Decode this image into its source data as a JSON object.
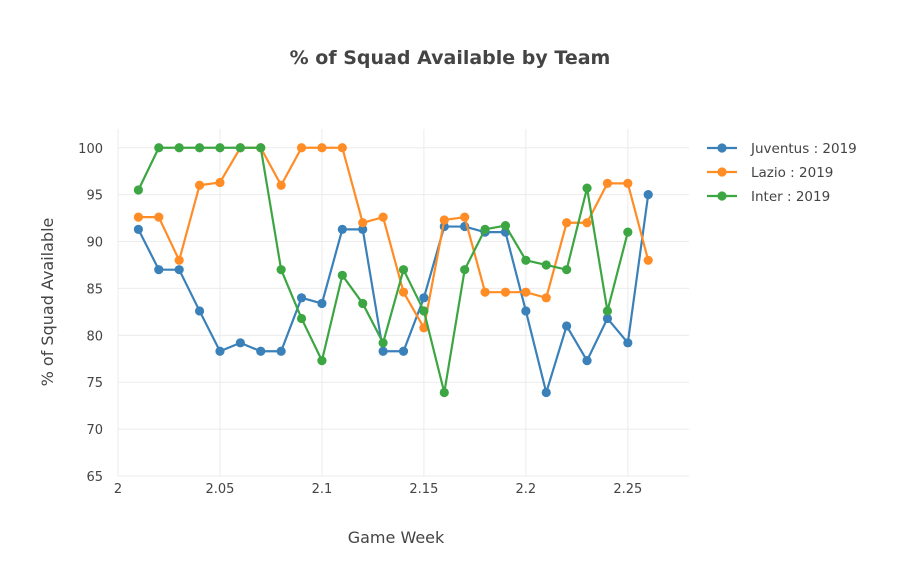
{
  "chart_data": {
    "type": "line",
    "title": "% of Squad Available by Team",
    "xlabel": "Game Week",
    "ylabel": "% of Squad Available",
    "xlim": [
      2.0,
      2.28
    ],
    "ylim": [
      65,
      102
    ],
    "x_ticks": [
      {
        "value": 2.0,
        "label": "2"
      },
      {
        "value": 2.05,
        "label": "2.05"
      },
      {
        "value": 2.1,
        "label": "2.1"
      },
      {
        "value": 2.15,
        "label": "2.15"
      },
      {
        "value": 2.2,
        "label": "2.2"
      },
      {
        "value": 2.25,
        "label": "2.25"
      }
    ],
    "y_ticks": [
      65,
      70,
      75,
      80,
      85,
      90,
      95,
      100
    ],
    "grid": true,
    "legend_position": "top-right",
    "series": [
      {
        "name": "Juventus : 2019",
        "color": "#3a80b9",
        "x": [
          2.01,
          2.02,
          2.03,
          2.04,
          2.05,
          2.06,
          2.07,
          2.08,
          2.09,
          2.1,
          2.11,
          2.12,
          2.13,
          2.14,
          2.15,
          2.16,
          2.17,
          2.18,
          2.19,
          2.2,
          2.21,
          2.22,
          2.23,
          2.24,
          2.25,
          2.26
        ],
        "values": [
          91.3,
          87.0,
          87.0,
          82.6,
          78.3,
          79.2,
          78.3,
          78.3,
          84.0,
          83.4,
          91.3,
          91.3,
          78.3,
          78.3,
          84.0,
          91.6,
          91.6,
          91.0,
          91.0,
          82.6,
          73.9,
          81.0,
          77.3,
          81.8,
          79.2,
          95.0
        ]
      },
      {
        "name": "Lazio : 2019",
        "color": "#ff8c25",
        "x": [
          2.01,
          2.02,
          2.03,
          2.04,
          2.05,
          2.06,
          2.07,
          2.08,
          2.09,
          2.1,
          2.11,
          2.12,
          2.13,
          2.14,
          2.15,
          2.16,
          2.17,
          2.18,
          2.19,
          2.2,
          2.21,
          2.22,
          2.23,
          2.24,
          2.25,
          2.26
        ],
        "values": [
          92.6,
          92.6,
          88.0,
          96.0,
          96.3,
          100.0,
          100.0,
          96.0,
          100.0,
          100.0,
          100.0,
          92.0,
          92.6,
          84.6,
          80.8,
          92.3,
          92.6,
          84.6,
          84.6,
          84.6,
          84.0,
          92.0,
          92.0,
          96.2,
          96.2,
          88.0
        ]
      },
      {
        "name": "Inter : 2019",
        "color": "#3ca642",
        "x": [
          2.01,
          2.02,
          2.03,
          2.04,
          2.05,
          2.06,
          2.07,
          2.08,
          2.09,
          2.1,
          2.11,
          2.12,
          2.13,
          2.14,
          2.15,
          2.16,
          2.17,
          2.18,
          2.19,
          2.2,
          2.21,
          2.22,
          2.23,
          2.24,
          2.25
        ],
        "values": [
          95.5,
          100.0,
          100.0,
          100.0,
          100.0,
          100.0,
          100.0,
          87.0,
          81.8,
          77.3,
          86.4,
          83.4,
          79.2,
          87.0,
          82.6,
          73.9,
          87.0,
          91.3,
          91.7,
          88.0,
          87.5,
          87.0,
          95.7,
          82.6,
          91.0
        ]
      }
    ]
  }
}
